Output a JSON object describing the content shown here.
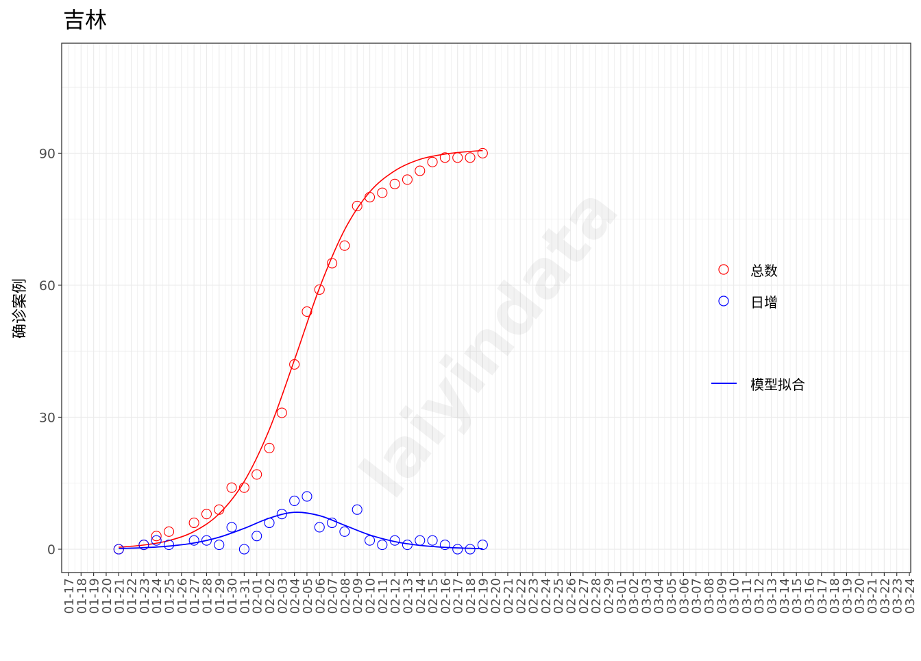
{
  "chart_data": {
    "type": "scatter",
    "title": "吉林",
    "xlabel": "",
    "ylabel": "确诊案例",
    "watermark": "laiyindata",
    "x_ticks": [
      "01-17",
      "01-18",
      "01-19",
      "01-20",
      "01-21",
      "01-22",
      "01-23",
      "01-24",
      "01-25",
      "01-26",
      "01-27",
      "01-28",
      "01-29",
      "01-30",
      "01-31",
      "02-01",
      "02-02",
      "02-03",
      "02-04",
      "02-05",
      "02-06",
      "02-07",
      "02-08",
      "02-09",
      "02-10",
      "02-11",
      "02-12",
      "02-13",
      "02-14",
      "02-15",
      "02-16",
      "02-17",
      "02-18",
      "02-19",
      "02-20",
      "02-21",
      "02-22",
      "02-23",
      "02-24",
      "02-25",
      "02-26",
      "02-27",
      "02-28",
      "02-29",
      "03-01",
      "03-02",
      "03-03",
      "03-04",
      "03-05",
      "03-06",
      "03-07",
      "03-08",
      "03-09",
      "03-10",
      "03-11",
      "03-12",
      "03-13",
      "03-14",
      "03-15",
      "03-16",
      "03-17",
      "03-18",
      "03-19",
      "03-20",
      "03-21",
      "03-22",
      "03-23",
      "03-24"
    ],
    "y_ticks": [
      0,
      30,
      60,
      90
    ],
    "ylim": [
      -5.3,
      115
    ],
    "grid": true,
    "legend_position": "right",
    "x": [
      "01-21",
      "01-23",
      "01-24",
      "01-25",
      "01-27",
      "01-28",
      "01-29",
      "01-30",
      "01-31",
      "02-01",
      "02-02",
      "02-03",
      "02-04",
      "02-05",
      "02-06",
      "02-07",
      "02-08",
      "02-09",
      "02-10",
      "02-11",
      "02-12",
      "02-13",
      "02-14",
      "02-15",
      "02-16",
      "02-17",
      "02-18",
      "02-19"
    ],
    "series": [
      {
        "name": "总数",
        "kind": "points",
        "color": "#ff0000",
        "values": [
          0,
          1,
          3,
          4,
          6,
          8,
          9,
          14,
          14,
          17,
          23,
          31,
          42,
          54,
          59,
          65,
          69,
          78,
          80,
          81,
          83,
          84,
          86,
          88,
          89,
          89,
          89,
          90
        ]
      },
      {
        "name": "日增",
        "kind": "points",
        "color": "#0000ff",
        "values": [
          0,
          1,
          2,
          1,
          2,
          2,
          1,
          5,
          0,
          3,
          6,
          8,
          11,
          12,
          5,
          6,
          4,
          9,
          2,
          1,
          2,
          1,
          2,
          2,
          1,
          0,
          0,
          1
        ]
      }
    ],
    "fit": {
      "name": "模型拟合",
      "x": [
        "01-21",
        "01-23",
        "01-25",
        "01-27",
        "01-29",
        "01-31",
        "02-02",
        "02-04",
        "02-06",
        "02-08",
        "02-10",
        "02-12",
        "02-14",
        "02-16",
        "02-18",
        "02-19"
      ],
      "total": [
        0.46,
        0.95,
        1.97,
        4.03,
        8.06,
        15.4,
        27.2,
        43.0,
        59.4,
        72.6,
        81.2,
        86.0,
        88.6,
        89.8,
        90.4,
        90.6
      ],
      "daily": [
        0.17,
        0.35,
        0.71,
        1.42,
        2.72,
        4.74,
        7.06,
        8.39,
        7.64,
        5.44,
        3.24,
        1.74,
        0.88,
        0.43,
        0.21,
        0.15
      ],
      "total_color": "#ff0000",
      "daily_color": "#0000ff"
    },
    "legend": [
      {
        "label": "总数",
        "symbol": "circle",
        "color": "#ff0000"
      },
      {
        "label": "日增",
        "symbol": "circle",
        "color": "#0000ff"
      },
      {
        "label": "模型拟合",
        "symbol": "line",
        "color": "#0000ff"
      }
    ]
  }
}
